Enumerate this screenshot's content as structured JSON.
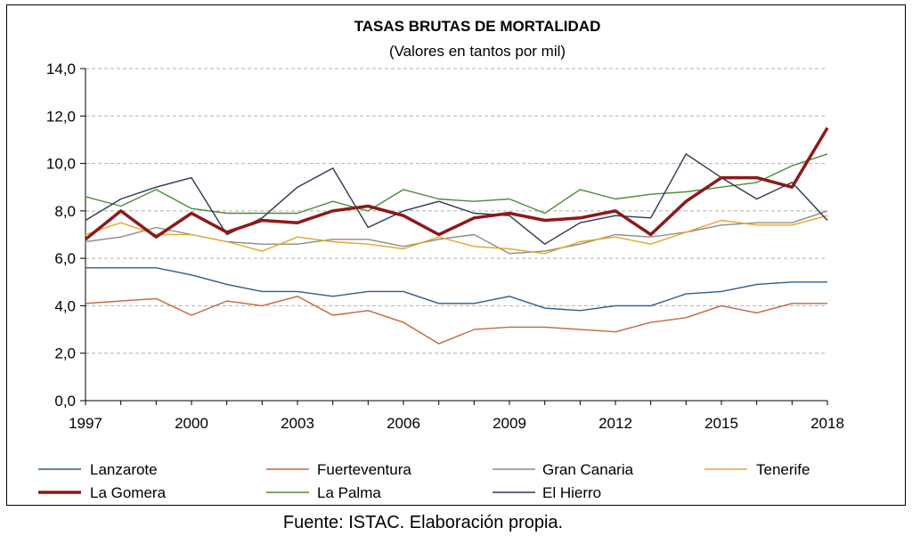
{
  "chart_data": {
    "type": "line",
    "title": "TASAS BRUTAS DE MORTALIDAD",
    "subtitle": "(Valores en tantos por mil)",
    "xlabel": "",
    "ylabel": "",
    "ylim": [
      0,
      14
    ],
    "y_ticks": [
      "0,0",
      "2,0",
      "4,0",
      "6,0",
      "8,0",
      "10,0",
      "12,0",
      "14,0"
    ],
    "x": [
      1997,
      1998,
      1999,
      2000,
      2001,
      2002,
      2003,
      2004,
      2005,
      2006,
      2007,
      2008,
      2009,
      2010,
      2011,
      2012,
      2013,
      2014,
      2015,
      2016,
      2017,
      2018
    ],
    "x_ticks": [
      "1997",
      "2000",
      "2003",
      "2006",
      "2009",
      "2012",
      "2015",
      "2018"
    ],
    "grid": "horizontal dashed",
    "legend_position": "bottom",
    "series": [
      {
        "name": "Lanzarote",
        "color": "#2E5C8A",
        "values": [
          5.6,
          5.6,
          5.6,
          5.3,
          4.9,
          4.6,
          4.6,
          4.4,
          4.6,
          4.6,
          4.1,
          4.1,
          4.4,
          3.9,
          3.8,
          4.0,
          4.0,
          4.5,
          4.6,
          4.9,
          5.0,
          5.0
        ]
      },
      {
        "name": "Fuerteventura",
        "color": "#C0693B",
        "values": [
          4.1,
          4.2,
          4.3,
          3.6,
          4.2,
          4.0,
          4.4,
          3.6,
          3.8,
          3.3,
          2.4,
          3.0,
          3.1,
          3.1,
          3.0,
          2.9,
          3.3,
          3.5,
          4.0,
          3.7,
          4.1,
          4.1
        ]
      },
      {
        "name": "Gran Canaria",
        "color": "#8C8C8C",
        "values": [
          6.7,
          6.9,
          7.3,
          7.0,
          6.7,
          6.6,
          6.6,
          6.8,
          6.8,
          6.5,
          6.8,
          7.0,
          6.2,
          6.3,
          6.6,
          7.0,
          6.9,
          7.1,
          7.4,
          7.5,
          7.5,
          8.0
        ]
      },
      {
        "name": "Tenerife",
        "color": "#E3A82B",
        "values": [
          7.0,
          7.5,
          7.0,
          7.0,
          6.7,
          6.3,
          6.9,
          6.7,
          6.6,
          6.4,
          6.9,
          6.5,
          6.4,
          6.2,
          6.7,
          6.9,
          6.6,
          7.1,
          7.6,
          7.4,
          7.4,
          7.8
        ]
      },
      {
        "name": "La Gomera",
        "color": "#8B1A1A",
        "values": [
          6.8,
          8.0,
          6.9,
          7.9,
          7.1,
          7.6,
          7.5,
          8.0,
          8.2,
          7.8,
          7.0,
          7.7,
          7.9,
          7.6,
          7.7,
          8.0,
          7.0,
          8.4,
          9.4,
          9.4,
          9.0,
          11.5
        ]
      },
      {
        "name": "La Palma",
        "color": "#4E8B3A",
        "values": [
          8.6,
          8.2,
          8.9,
          8.1,
          7.9,
          7.9,
          7.9,
          8.4,
          8.0,
          8.9,
          8.5,
          8.4,
          8.5,
          7.9,
          8.9,
          8.5,
          8.7,
          8.8,
          9.0,
          9.2,
          9.9,
          10.4
        ]
      },
      {
        "name": "El Hierro",
        "color": "#2B3A55",
        "values": [
          7.6,
          8.5,
          9.0,
          9.4,
          7.0,
          7.7,
          9.0,
          9.8,
          7.3,
          8.0,
          8.4,
          7.9,
          7.8,
          6.6,
          7.5,
          7.8,
          7.7,
          10.4,
          9.4,
          8.5,
          9.2,
          7.6
        ]
      }
    ]
  },
  "source": "Fuente: ISTAC. Elaboración propia."
}
